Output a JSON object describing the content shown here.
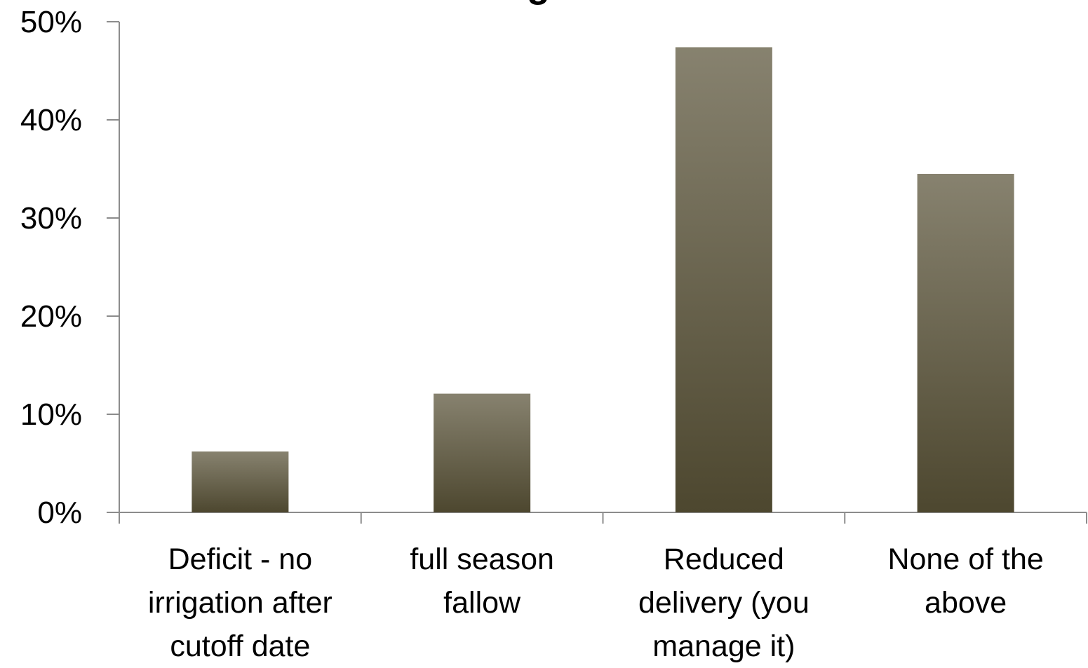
{
  "chart_data": {
    "type": "bar",
    "title": "Arrangement",
    "categories": [
      [
        "Deficit - no",
        "irrigation after",
        "cutoff date"
      ],
      [
        "full season",
        "fallow"
      ],
      [
        "Reduced",
        "delivery (you",
        "manage it)"
      ],
      [
        "None of the",
        "above"
      ]
    ],
    "values": [
      6.2,
      12.1,
      47.4,
      34.5
    ],
    "value_unit": "%",
    "ylim": [
      0,
      50
    ],
    "yticks": [
      "0%",
      "10%",
      "20%",
      "30%",
      "40%",
      "50%"
    ],
    "xlabel": "",
    "ylabel": "",
    "grid": false,
    "legend": "none",
    "colors": {
      "bar_top": "#87826f",
      "bar_bottom": "#4d472f",
      "axis": "#8c8c8c",
      "text": "#000000"
    }
  }
}
